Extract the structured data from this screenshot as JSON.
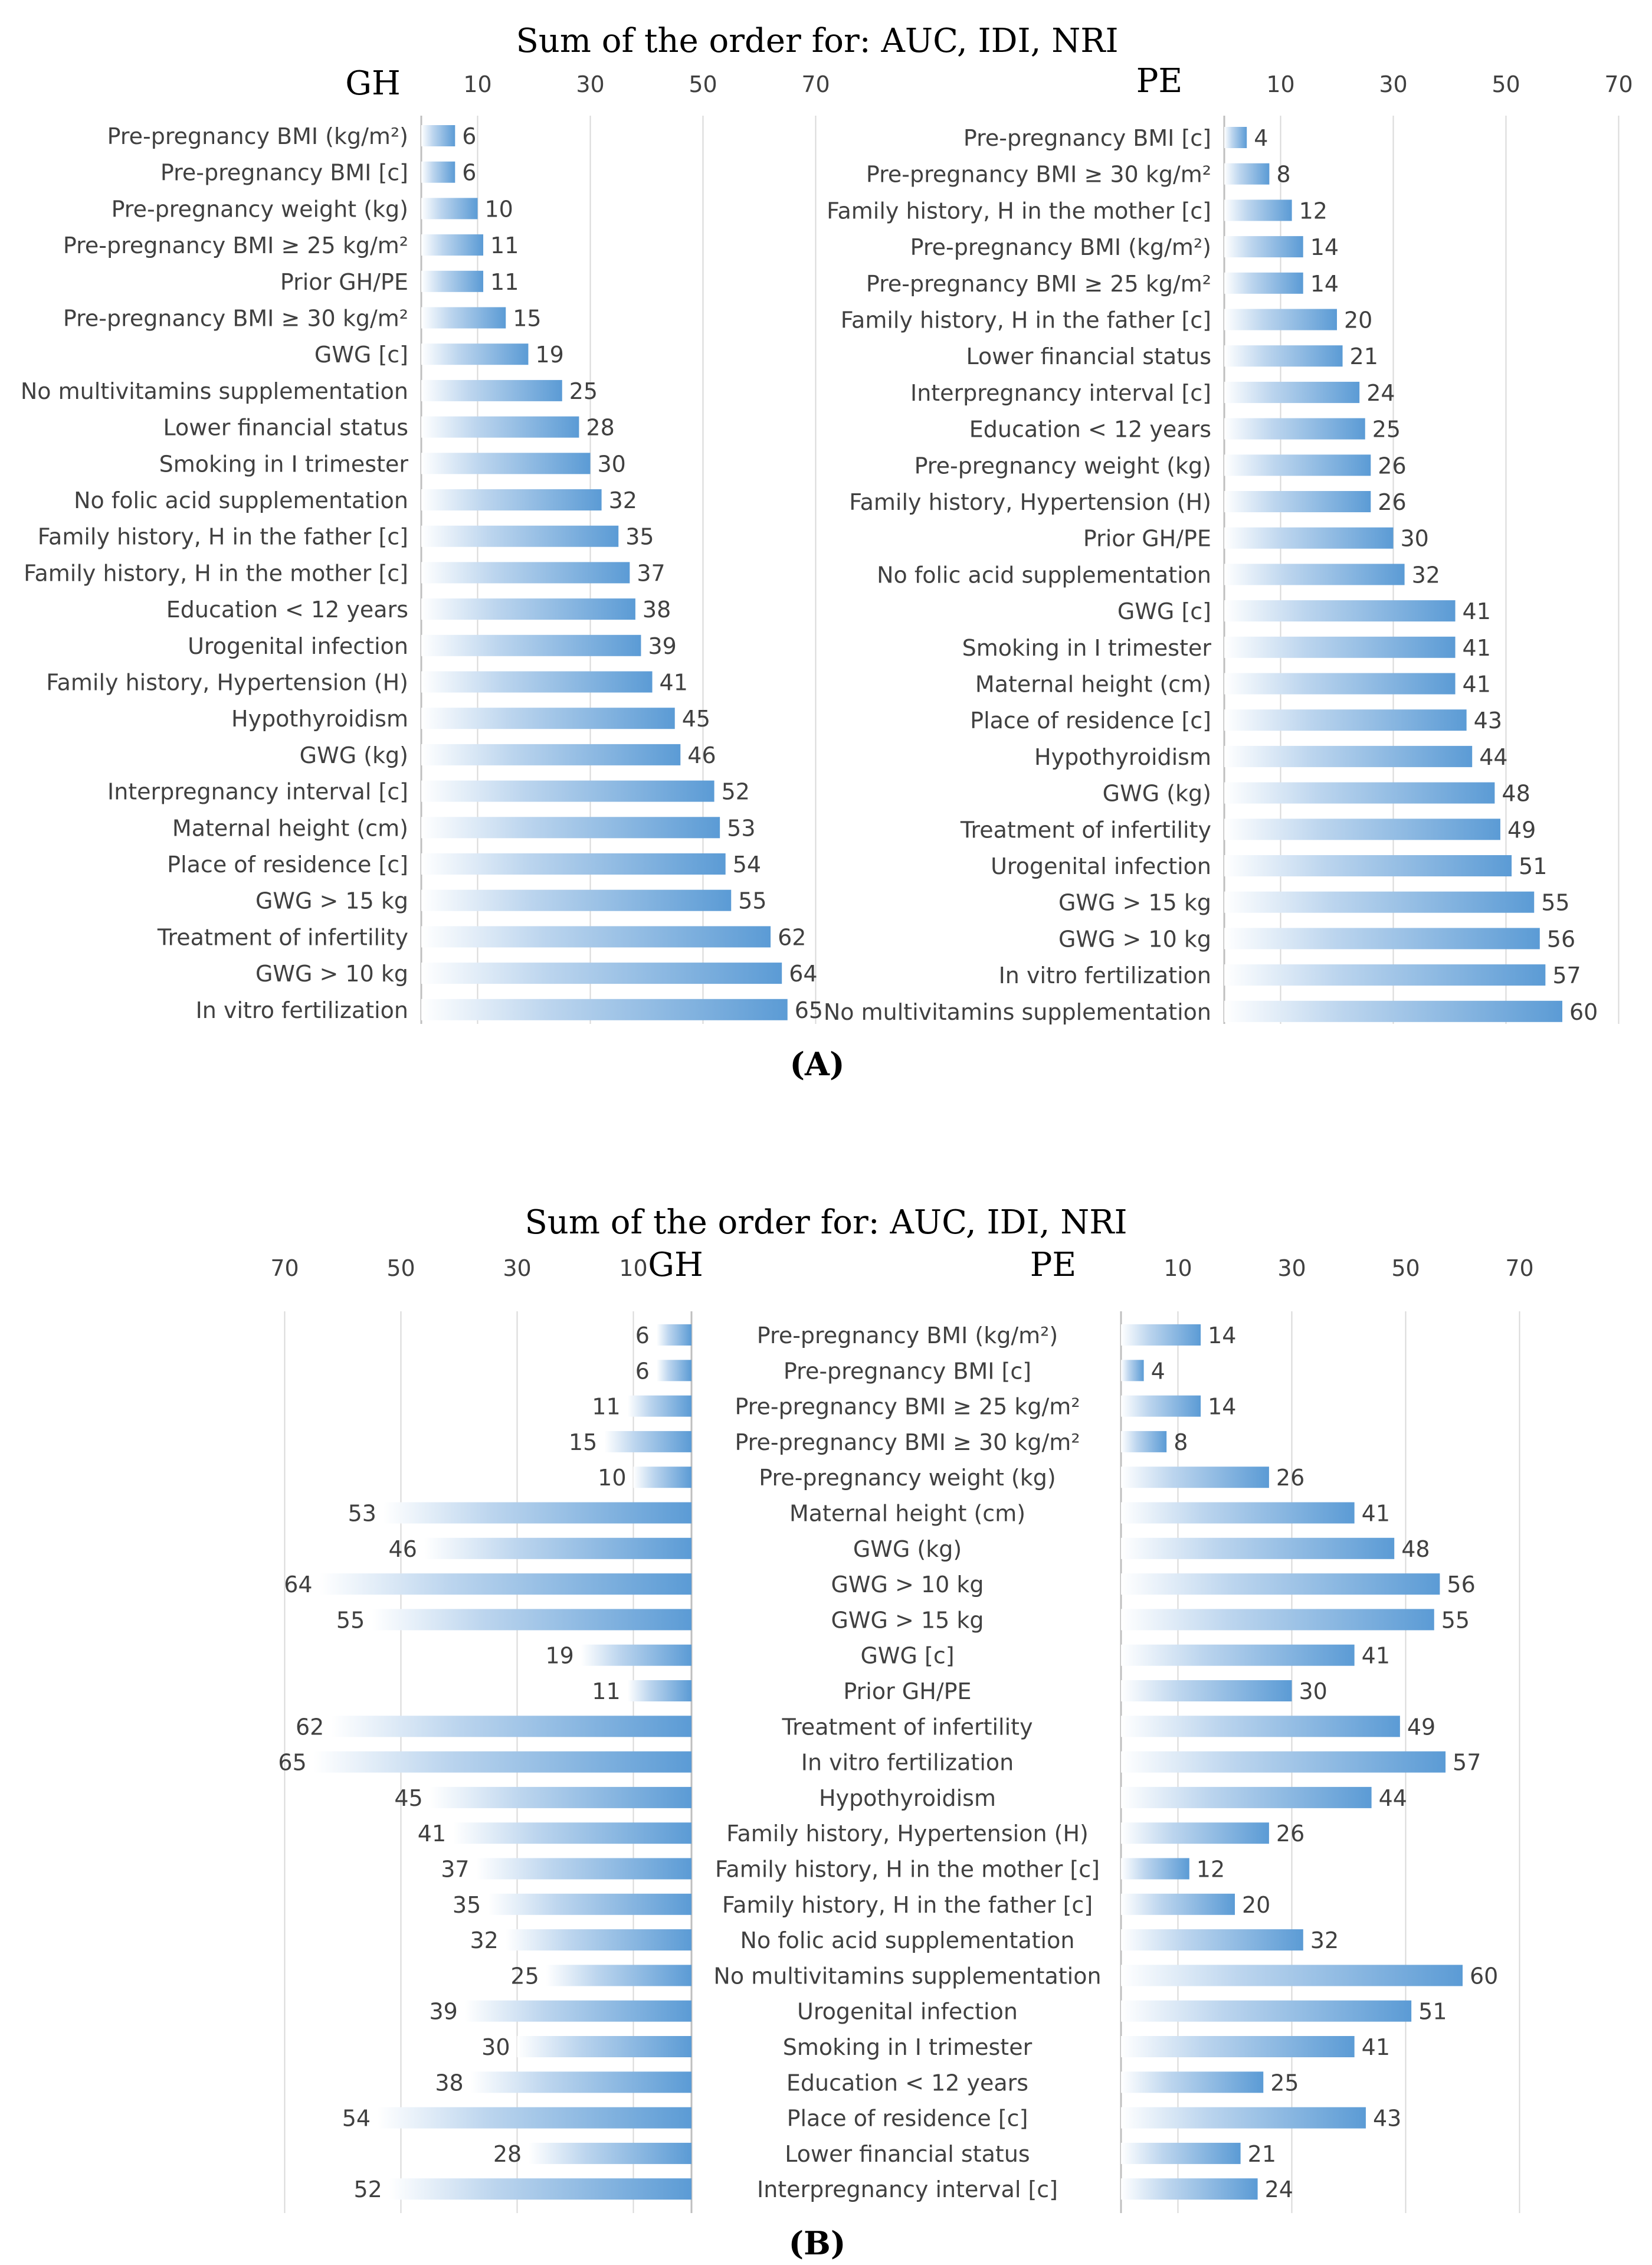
{
  "colors": {
    "bar": "#5B9BD5",
    "bar_light": "#ffffff",
    "grid": "#d9d9d9",
    "axis": "#bfbfbf",
    "text": "#404040"
  },
  "chart_data": [
    {
      "panel": "A",
      "type": "bar",
      "orientation": "horizontal",
      "title": "Sum of the order for: AUC, IDI, NRI",
      "caption": "(A)",
      "xlim": [
        0,
        70
      ],
      "ticks": [
        10,
        30,
        50,
        70
      ],
      "series": [
        {
          "name": "GH",
          "categories": [
            "Pre-pregnancy BMI (kg/m²)",
            "Pre-pregnancy BMI [c]",
            "Pre-pregnancy weight (kg)",
            "Pre-pregnancy BMI ≥ 25 kg/m²",
            "Prior GH/PE",
            "Pre-pregnancy BMI ≥ 30 kg/m²",
            "GWG [c]",
            "No multivitamins supplementation",
            "Lower financial status",
            "Smoking in I trimester",
            "No folic acid supplementation",
            "Family history, H in the father [c]",
            "Family history, H in the mother [c]",
            "Education < 12 years",
            "Urogenital infection",
            "Family history, Hypertension (H)",
            "Hypothyroidism",
            "GWG (kg)",
            "Interpregnancy interval [c]",
            "Maternal height (cm)",
            "Place of residence [c]",
            "GWG > 15 kg",
            "Treatment of infertility",
            "GWG > 10 kg",
            "In vitro fertilization"
          ],
          "values": [
            6,
            6,
            10,
            11,
            11,
            15,
            19,
            25,
            28,
            30,
            32,
            35,
            37,
            38,
            39,
            41,
            45,
            46,
            52,
            53,
            54,
            55,
            62,
            64,
            65
          ]
        },
        {
          "name": "PE",
          "categories": [
            "Pre-pregnancy BMI [c]",
            "Pre-pregnancy BMI ≥ 30 kg/m²",
            "Family history, H in the mother [c]",
            "Pre-pregnancy BMI (kg/m²)",
            "Pre-pregnancy BMI ≥ 25 kg/m²",
            "Family history, H in the father [c]",
            "Lower financial status",
            "Interpregnancy interval [c]",
            "Education < 12 years",
            "Pre-pregnancy weight (kg)",
            "Family history, Hypertension (H)",
            "Prior GH/PE",
            "No folic acid supplementation",
            "GWG [c]",
            "Smoking in I trimester",
            "Maternal height (cm)",
            "Place of residence [c]",
            "Hypothyroidism",
            "GWG (kg)",
            "Treatment of infertility",
            "Urogenital infection",
            "GWG > 15 kg",
            "GWG > 10 kg",
            "In vitro fertilization",
            "No multivitamins supplementation"
          ],
          "values": [
            4,
            8,
            12,
            14,
            14,
            20,
            21,
            24,
            25,
            26,
            26,
            30,
            32,
            41,
            41,
            41,
            43,
            44,
            48,
            49,
            51,
            55,
            56,
            57,
            60
          ]
        }
      ]
    },
    {
      "panel": "B",
      "type": "bar",
      "orientation": "horizontal-butterfly",
      "title": "Sum of the order for: AUC, IDI, NRI",
      "caption": "(B)",
      "xlim": [
        0,
        70
      ],
      "ticks": [
        10,
        30,
        50,
        70
      ],
      "categories": [
        "Pre-pregnancy BMI (kg/m²)",
        "Pre-pregnancy BMI [c]",
        "Pre-pregnancy BMI ≥ 25 kg/m²",
        "Pre-pregnancy BMI ≥ 30 kg/m²",
        "Pre-pregnancy weight (kg)",
        "Maternal height (cm)",
        "GWG (kg)",
        "GWG > 10 kg",
        "GWG > 15 kg",
        "GWG [c]",
        "Prior GH/PE",
        "Treatment of infertility",
        "In vitro fertilization",
        "Hypothyroidism",
        "Family history, Hypertension (H)",
        "Family history, H in the mother [c]",
        "Family history, H in the father [c]",
        "No folic acid supplementation",
        "No multivitamins supplementation",
        "Urogenital infection",
        "Smoking in I trimester",
        "Education < 12 years",
        "Place of residence [c]",
        "Lower financial status",
        "Interpregnancy interval [c]"
      ],
      "series": [
        {
          "name": "GH",
          "values": [
            6,
            6,
            11,
            15,
            10,
            53,
            46,
            64,
            55,
            19,
            11,
            62,
            65,
            45,
            41,
            37,
            35,
            32,
            25,
            39,
            30,
            38,
            54,
            28,
            52
          ]
        },
        {
          "name": "PE",
          "values": [
            14,
            4,
            14,
            8,
            26,
            41,
            48,
            56,
            55,
            41,
            30,
            49,
            57,
            44,
            26,
            12,
            20,
            32,
            60,
            51,
            41,
            25,
            43,
            21,
            24
          ]
        }
      ]
    }
  ]
}
